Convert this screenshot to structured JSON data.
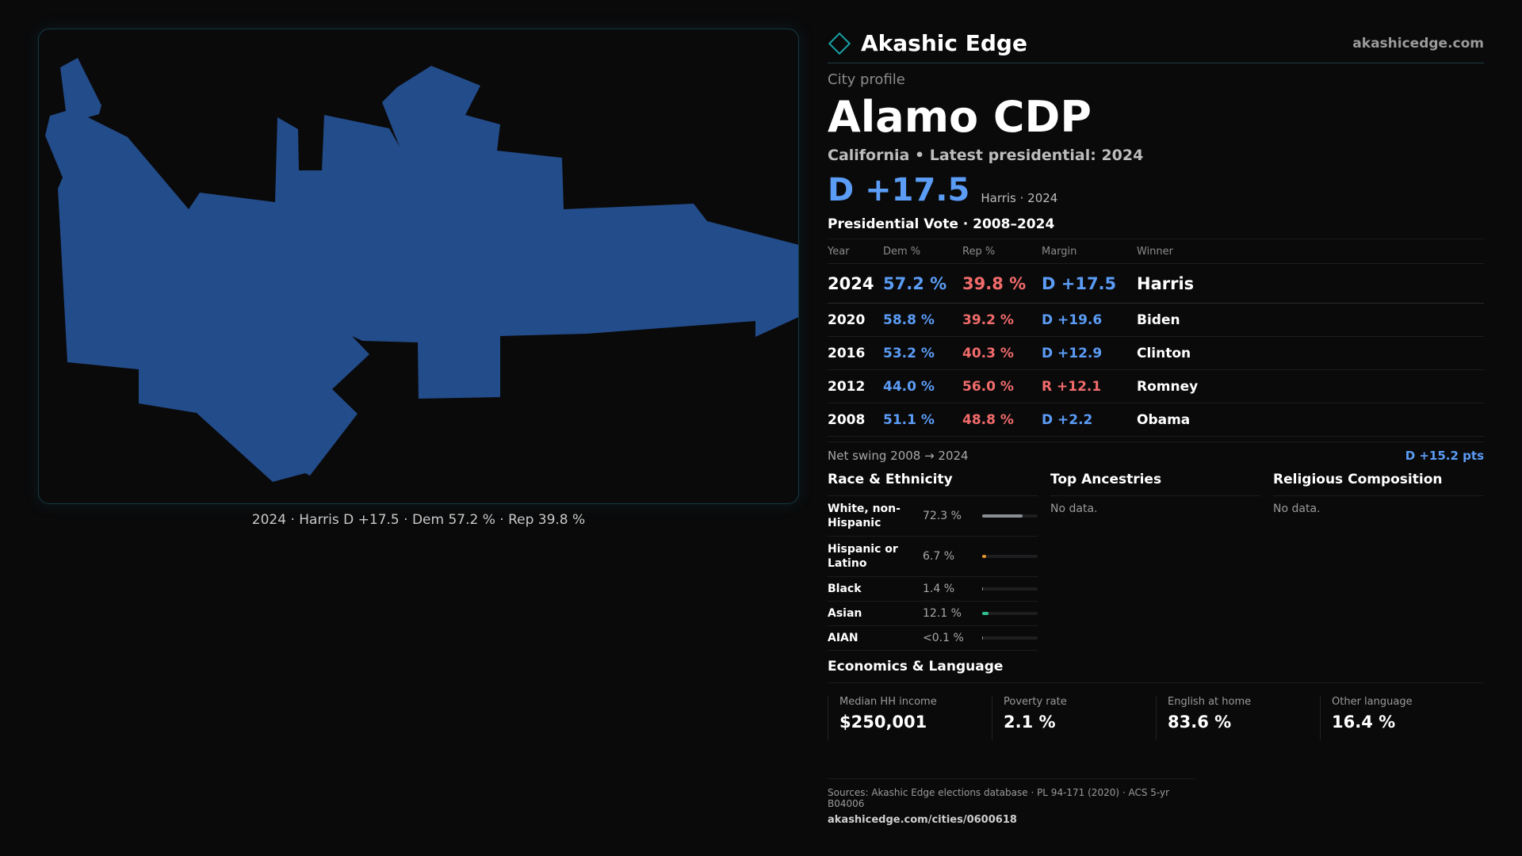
{
  "map": {
    "caption": "2024 · Harris D +17.5 · Dem 57.2 % · Rep 39.8 %",
    "fill_color": "#234c8a"
  },
  "brand": {
    "icon": "diamond-icon",
    "title": "Akashic Edge",
    "url": "akashicedge.com"
  },
  "profile": {
    "kicker": "City profile",
    "city": "Alamo CDP",
    "subtitle": "California • Latest presidential: 2024",
    "headline_margin": "D +17.5",
    "headline_note": "Harris · 2024"
  },
  "vote": {
    "title": "Presidential Vote · 2008–2024",
    "headers": {
      "year": "Year",
      "dem": "Dem %",
      "rep": "Rep %",
      "margin": "Margin",
      "winner": "Winner"
    },
    "rows": [
      {
        "year": "2024",
        "dem": "57.2 %",
        "rep": "39.8 %",
        "margin": "D +17.5",
        "winner": "Harris"
      },
      {
        "year": "2020",
        "dem": "58.8 %",
        "rep": "39.2 %",
        "margin": "D +19.6",
        "winner": "Biden"
      },
      {
        "year": "2016",
        "dem": "53.2 %",
        "rep": "40.3 %",
        "margin": "D +12.9",
        "winner": "Clinton"
      },
      {
        "year": "2012",
        "dem": "44.0 %",
        "rep": "56.0 %",
        "margin": "R +12.1",
        "winner": "Romney"
      },
      {
        "year": "2008",
        "dem": "51.1 %",
        "rep": "48.8 %",
        "margin": "D +2.2",
        "winner": "Obama"
      }
    ],
    "swing_label": "Net swing 2008 → 2024",
    "swing_value": "D +15.2 pts"
  },
  "race": {
    "title": "Race & Ethnicity",
    "rows": [
      {
        "label": "White, non-Hispanic",
        "pct": "72.3 %",
        "value": 72.3,
        "color": "#8a8f96"
      },
      {
        "label": "Hispanic or Latino",
        "pct": "6.7 %",
        "value": 6.7,
        "color": "#e3962e"
      },
      {
        "label": "Black",
        "pct": "1.4 %",
        "value": 1.4,
        "color": "#8a8f96"
      },
      {
        "label": "Asian",
        "pct": "12.1 %",
        "value": 12.1,
        "color": "#2fc08e"
      },
      {
        "label": "AIAN",
        "pct": "<0.1 %",
        "value": 0.05,
        "color": "#8a8f96"
      }
    ]
  },
  "ancestries": {
    "title": "Top Ancestries",
    "empty": "No data."
  },
  "religion": {
    "title": "Religious Composition",
    "empty": "No data."
  },
  "economics": {
    "title": "Economics & Language",
    "cells": [
      {
        "label": "Median HH income",
        "value": "$250,001"
      },
      {
        "label": "Poverty rate",
        "value": "2.1 %"
      },
      {
        "label": "English at home",
        "value": "83.6 %"
      },
      {
        "label": "Other language",
        "value": "16.4 %"
      }
    ]
  },
  "sources": {
    "line": "Sources: Akashic Edge elections database · PL 94-171 (2020) · ACS 5-yr B04006",
    "url": "akashicedge.com/cities/0600618"
  }
}
